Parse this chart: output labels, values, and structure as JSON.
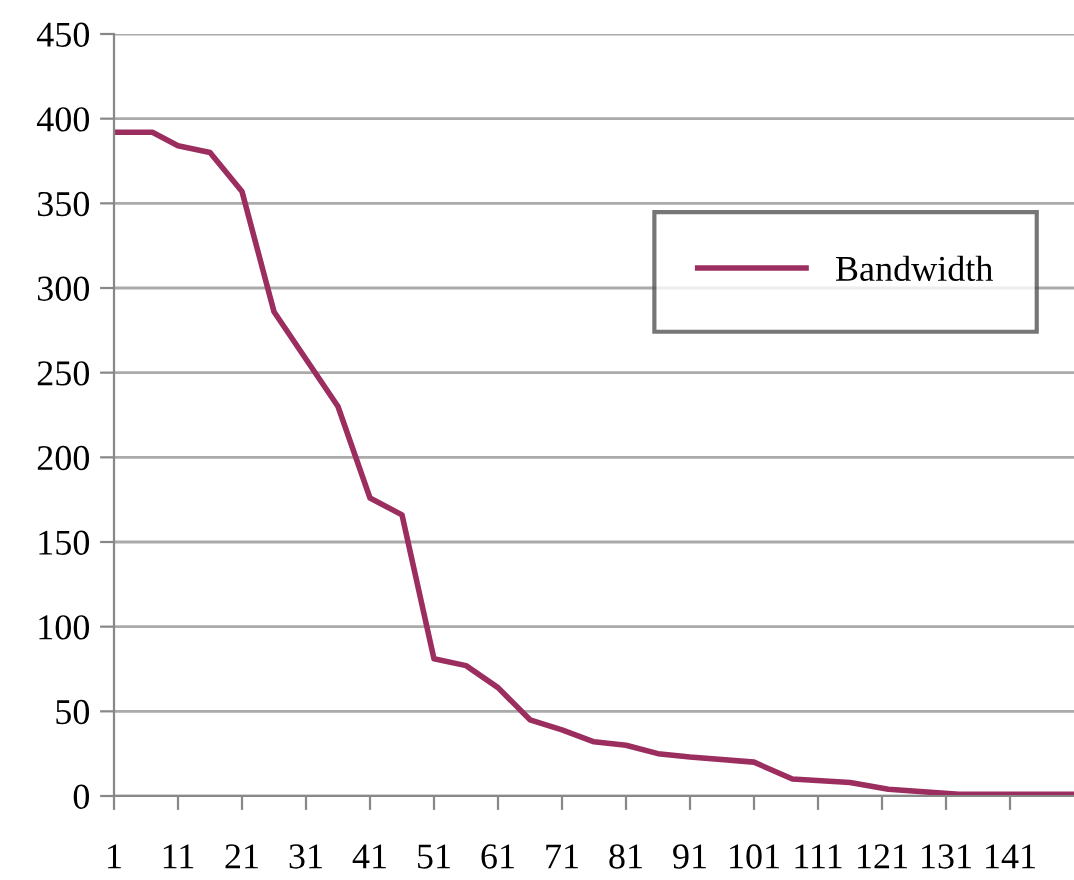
{
  "chart_data": {
    "type": "line",
    "x": [
      1,
      7,
      11,
      16,
      21,
      26,
      36,
      41,
      46,
      51,
      56,
      61,
      66,
      71,
      76,
      81,
      86,
      91,
      101,
      107,
      116,
      122,
      133,
      151
    ],
    "series": [
      {
        "name": "Bandwidth",
        "color": "#9b2d5f",
        "values": [
          392,
          392,
          384,
          380,
          357,
          286,
          230,
          176,
          166,
          81,
          77,
          64,
          45,
          39,
          32,
          30,
          25,
          23,
          20,
          10,
          8,
          4,
          1,
          1
        ]
      }
    ],
    "xlim": [
      1,
      151
    ],
    "xticks": [
      1,
      11,
      21,
      31,
      41,
      51,
      61,
      71,
      81,
      91,
      101,
      111,
      121,
      131,
      141
    ],
    "ylim": [
      0,
      450
    ],
    "yticks": [
      0,
      50,
      100,
      150,
      200,
      250,
      300,
      350,
      400,
      450
    ],
    "grid": "y",
    "legend": "top right",
    "marker": "none",
    "line_style": "solid"
  }
}
